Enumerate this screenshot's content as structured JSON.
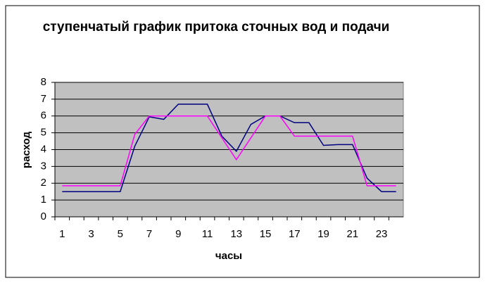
{
  "chart_data": {
    "type": "line",
    "title": "ступенчатый график притока сточных вод и подачи",
    "xlabel": "часы",
    "ylabel": "расход",
    "categories": [
      1,
      null,
      3,
      null,
      5,
      null,
      7,
      null,
      9,
      null,
      11,
      null,
      13,
      null,
      15,
      null,
      17,
      null,
      19,
      null,
      21,
      null,
      23,
      null
    ],
    "series": [
      {
        "color": "#000080",
        "values": [
          1.5,
          1.5,
          1.5,
          1.5,
          1.5,
          4.2,
          5.95,
          5.8,
          6.7,
          6.7,
          6.7,
          4.8,
          3.9,
          5.5,
          6.0,
          6.0,
          5.6,
          5.6,
          4.25,
          4.3,
          4.3,
          2.3,
          1.5,
          1.5
        ]
      },
      {
        "color": "#ff00ff",
        "values": [
          1.85,
          1.85,
          1.85,
          1.85,
          1.85,
          4.9,
          6.0,
          6.0,
          6.0,
          6.0,
          6.0,
          4.7,
          3.4,
          4.7,
          6.0,
          6.0,
          4.8,
          4.8,
          4.8,
          4.8,
          4.8,
          1.85,
          1.85,
          1.85
        ]
      }
    ],
    "ylim": [
      0,
      8
    ],
    "yticks": [
      0,
      1,
      2,
      3,
      4,
      5,
      6,
      7,
      8
    ],
    "grid": true,
    "plot_background": "#c0c0c0"
  }
}
